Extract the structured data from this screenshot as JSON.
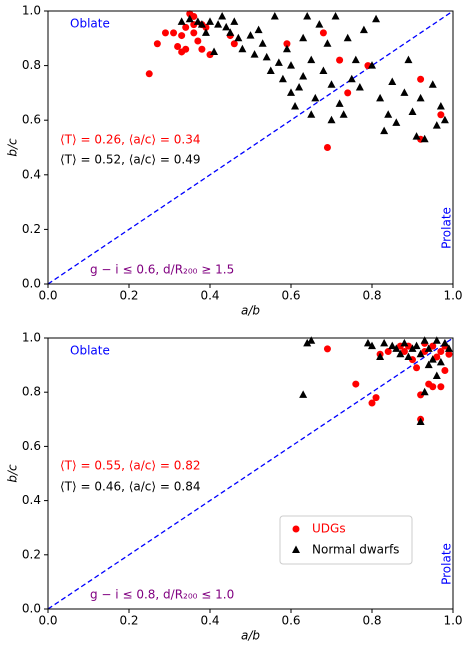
{
  "chart_data": [
    {
      "type": "scatter",
      "x_label": "a/b",
      "y_label": "b/c",
      "xlim": [
        0,
        1
      ],
      "ylim": [
        0,
        1
      ],
      "xticks": [
        {
          "value": 0,
          "label": "0.0"
        },
        0.2,
        0.4,
        0.6,
        0.8,
        {
          "value": 1,
          "label": "1.0"
        }
      ],
      "yticks": [
        {
          "value": 0,
          "label": "0.0"
        },
        0.2,
        0.4,
        0.6,
        0.8,
        {
          "value": 1,
          "label": "1.0"
        }
      ],
      "diagonal": true,
      "annotations": [
        {
          "text": "Oblate",
          "color": "#0000ff"
        },
        {
          "text": "⟨T⟩ = 0.26, ⟨a/c⟩ = 0.34",
          "color": "#ff0000"
        },
        {
          "text": "⟨T⟩ = 0.52, ⟨a/c⟩ = 0.49",
          "color": "#000000"
        },
        {
          "text": "g − i ≤ 0.6, d/R₂₀₀ ≥ 1.5",
          "color": "#800080"
        },
        {
          "text": "Prolate",
          "color": "#0000ff"
        }
      ],
      "series": [
        {
          "color": "#ff0000",
          "marker": "circle",
          "x": [
            0.25,
            0.27,
            0.29,
            0.31,
            0.32,
            0.33,
            0.33,
            0.34,
            0.34,
            0.35,
            0.36,
            0.36,
            0.37,
            0.38,
            0.38,
            0.39,
            0.4,
            0.46,
            0.59,
            0.68,
            0.69,
            0.72,
            0.74,
            0.79,
            0.92,
            0.92,
            0.97,
            0.45,
            0.36
          ],
          "values": [
            0.77,
            0.88,
            0.92,
            0.92,
            0.87,
            0.85,
            0.91,
            0.94,
            0.86,
            0.99,
            0.98,
            0.92,
            0.89,
            0.95,
            0.86,
            0.94,
            0.84,
            0.88,
            0.88,
            0.92,
            0.5,
            0.82,
            0.7,
            0.8,
            0.75,
            0.53,
            0.62,
            0.91,
            0.95
          ]
        },
        {
          "color": "#000000",
          "marker": "triangle",
          "x": [
            0.33,
            0.35,
            0.37,
            0.38,
            0.4,
            0.42,
            0.44,
            0.46,
            0.45,
            0.47,
            0.48,
            0.5,
            0.51,
            0.52,
            0.53,
            0.54,
            0.55,
            0.56,
            0.57,
            0.58,
            0.59,
            0.6,
            0.6,
            0.61,
            0.62,
            0.63,
            0.63,
            0.64,
            0.65,
            0.65,
            0.66,
            0.67,
            0.68,
            0.69,
            0.7,
            0.7,
            0.71,
            0.72,
            0.73,
            0.74,
            0.75,
            0.76,
            0.77,
            0.78,
            0.8,
            0.81,
            0.82,
            0.83,
            0.84,
            0.85,
            0.86,
            0.88,
            0.89,
            0.9,
            0.91,
            0.92,
            0.93,
            0.95,
            0.97,
            0.98,
            0.96,
            0.41,
            0.43,
            0.39
          ],
          "values": [
            0.96,
            0.97,
            0.96,
            0.95,
            0.96,
            0.95,
            0.94,
            0.96,
            0.92,
            0.9,
            0.86,
            0.91,
            0.84,
            0.93,
            0.88,
            0.83,
            0.78,
            0.98,
            0.81,
            0.75,
            0.86,
            0.8,
            0.7,
            0.65,
            0.72,
            0.9,
            0.76,
            0.98,
            0.62,
            0.82,
            0.68,
            0.95,
            0.78,
            0.88,
            0.6,
            0.73,
            0.98,
            0.66,
            0.62,
            0.9,
            0.75,
            0.82,
            0.72,
            0.93,
            0.8,
            0.97,
            0.68,
            0.56,
            0.62,
            0.74,
            0.59,
            0.7,
            0.82,
            0.63,
            0.54,
            0.68,
            0.53,
            0.73,
            0.65,
            0.6,
            0.58,
            0.85,
            0.98,
            0.92
          ]
        }
      ]
    },
    {
      "type": "scatter",
      "x_label": "a/b",
      "y_label": "b/c",
      "xlim": [
        0,
        1
      ],
      "ylim": [
        0,
        1
      ],
      "xticks": [
        {
          "value": 0,
          "label": "0.0"
        },
        0.2,
        0.4,
        0.6,
        0.8,
        {
          "value": 1,
          "label": "1.0"
        }
      ],
      "yticks": [
        {
          "value": 0,
          "label": "0.0"
        },
        0.2,
        0.4,
        0.6,
        0.8,
        {
          "value": 1,
          "label": "1.0"
        }
      ],
      "diagonal": true,
      "annotations": [
        {
          "text": "Oblate",
          "color": "#0000ff"
        },
        {
          "text": "⟨T⟩ = 0.55, ⟨a/c⟩ = 0.82",
          "color": "#ff0000"
        },
        {
          "text": "⟨T⟩ = 0.46, ⟨a/c⟩ = 0.84",
          "color": "#000000"
        },
        {
          "text": "g − i ≤ 0.8, d/R₂₀₀ ≤ 1.0",
          "color": "#800080"
        },
        {
          "text": "Prolate",
          "color": "#0000ff"
        }
      ],
      "legend": "lower right",
      "series": [
        {
          "name": "UDGs",
          "color": "#ff0000",
          "marker": "circle",
          "x": [
            0.69,
            0.76,
            0.8,
            0.81,
            0.82,
            0.84,
            0.87,
            0.88,
            0.89,
            0.9,
            0.91,
            0.92,
            0.92,
            0.93,
            0.94,
            0.95,
            0.95,
            0.96,
            0.97,
            0.97,
            0.98,
            0.98,
            0.99,
            0.93
          ],
          "values": [
            0.96,
            0.83,
            0.76,
            0.78,
            0.94,
            0.95,
            0.97,
            0.95,
            0.97,
            0.92,
            0.89,
            0.79,
            0.7,
            0.95,
            0.83,
            0.82,
            0.97,
            0.93,
            0.95,
            0.82,
            0.88,
            0.97,
            0.94,
            0.98
          ]
        },
        {
          "name": "Normal dwarfs",
          "color": "#000000",
          "marker": "triangle",
          "x": [
            0.63,
            0.64,
            0.65,
            0.79,
            0.8,
            0.82,
            0.83,
            0.85,
            0.86,
            0.87,
            0.88,
            0.89,
            0.9,
            0.91,
            0.92,
            0.93,
            0.93,
            0.94,
            0.95,
            0.96,
            0.96,
            0.97,
            0.98,
            0.99,
            0.94,
            0.92
          ],
          "values": [
            0.79,
            0.98,
            0.99,
            0.98,
            0.97,
            0.93,
            0.98,
            0.97,
            0.96,
            0.94,
            0.98,
            0.93,
            0.96,
            0.97,
            0.94,
            0.99,
            0.8,
            0.9,
            0.92,
            0.99,
            0.86,
            0.91,
            0.98,
            0.96,
            0.96,
            0.69
          ]
        }
      ]
    }
  ]
}
